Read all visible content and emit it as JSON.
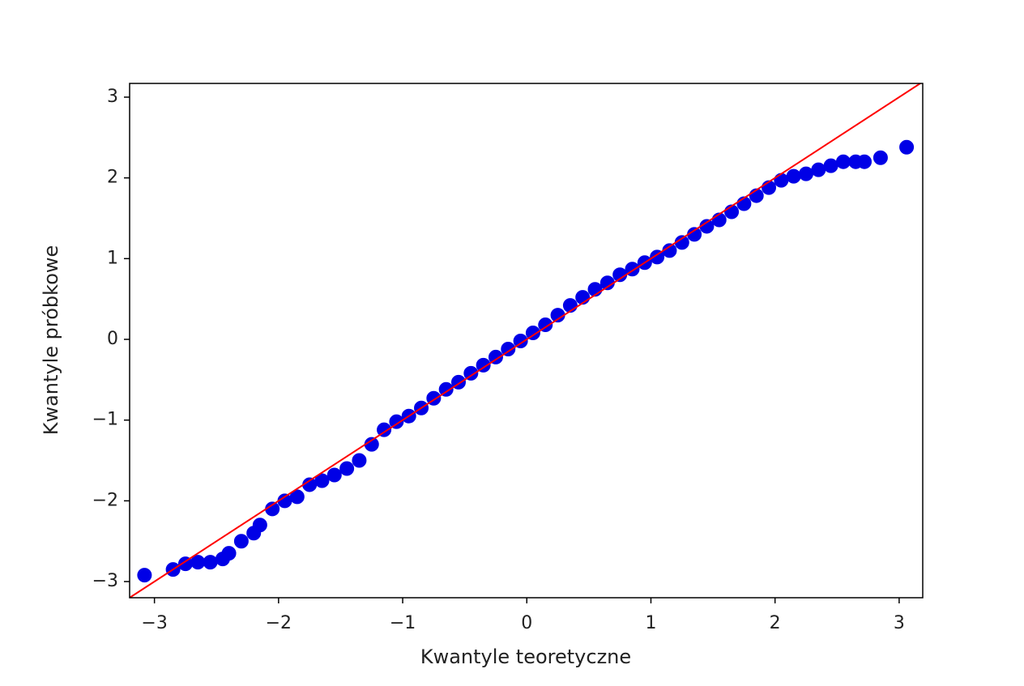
{
  "chart_data": {
    "type": "scatter",
    "xlabel": "Kwantyle teoretyczne",
    "ylabel": "Kwantyle próbkowe",
    "xlim": [
      -3.2,
      3.19
    ],
    "ylim": [
      -3.2,
      3.17
    ],
    "xticks": [
      {
        "value": -3,
        "label": "−3"
      },
      {
        "value": -2,
        "label": "−2"
      },
      {
        "value": -1,
        "label": "−1"
      },
      0,
      1,
      2,
      3
    ],
    "yticks": [
      {
        "value": -3,
        "label": "−3"
      },
      {
        "value": -2,
        "label": "−2"
      },
      {
        "value": -1,
        "label": "−1"
      },
      0,
      1,
      2,
      3
    ],
    "grid": false,
    "series": [
      {
        "type": "scatter",
        "color": "#0000e6",
        "x": [
          -3.08,
          -2.85,
          -2.75,
          -2.65,
          -2.55,
          -2.45,
          -2.4,
          -2.3,
          -2.2,
          -2.15,
          -2.05,
          -1.95,
          -1.85,
          -1.75,
          -1.65,
          -1.55,
          -1.45,
          -1.35,
          -1.25,
          -1.15,
          -1.05,
          -0.95,
          -0.85,
          -0.75,
          -0.65,
          -0.55,
          -0.45,
          -0.35,
          -0.25,
          -0.15,
          -0.05,
          0.05,
          0.15,
          0.25,
          0.35,
          0.45,
          0.55,
          0.65,
          0.75,
          0.85,
          0.95,
          1.05,
          1.15,
          1.25,
          1.35,
          1.45,
          1.55,
          1.65,
          1.75,
          1.85,
          1.95,
          2.05,
          2.15,
          2.25,
          2.35,
          2.45,
          2.55,
          2.65,
          2.72,
          2.85,
          3.06
        ],
        "values": [
          -2.92,
          -2.85,
          -2.78,
          -2.76,
          -2.76,
          -2.72,
          -2.65,
          -2.5,
          -2.4,
          -2.3,
          -2.1,
          -2.0,
          -1.95,
          -1.8,
          -1.75,
          -1.68,
          -1.6,
          -1.5,
          -1.3,
          -1.12,
          -1.02,
          -0.95,
          -0.85,
          -0.73,
          -0.62,
          -0.53,
          -0.42,
          -0.32,
          -0.22,
          -0.12,
          -0.02,
          0.08,
          0.18,
          0.3,
          0.42,
          0.52,
          0.62,
          0.7,
          0.8,
          0.87,
          0.95,
          1.02,
          1.1,
          1.2,
          1.3,
          1.4,
          1.48,
          1.58,
          1.68,
          1.78,
          1.88,
          1.97,
          2.02,
          2.05,
          2.1,
          2.15,
          2.2,
          2.2,
          2.2,
          2.25,
          2.38
        ]
      },
      {
        "type": "line",
        "color": "#ff0000",
        "x": [
          -3.2,
          3.19
        ],
        "values": [
          -3.2,
          3.19
        ]
      }
    ]
  }
}
